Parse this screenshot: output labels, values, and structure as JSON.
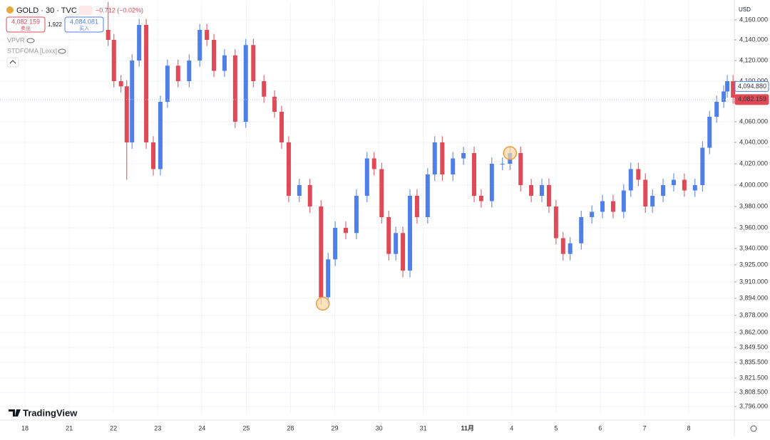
{
  "header": {
    "symbol": "GOLD · 30 · TVC",
    "change": "−0.712 (−0.02%)",
    "sell_price": "4,082.159",
    "sell_label": "卖出",
    "spread": "1,922",
    "buy_price": "4,084.081",
    "buy_label": "买入",
    "indicators": [
      "VPVR",
      "STDFOMA [Loxx]"
    ],
    "brand": "TradingView"
  },
  "chart_data": {
    "type": "candlestick",
    "currency": "USD",
    "up_color": "#4f7fe8",
    "down_color": "#e04a57",
    "grid": true,
    "x": [
      1.88,
      2.01,
      2.17,
      2.3,
      2.42,
      2.58,
      2.74,
      2.9,
      3.06,
      3.22,
      3.46,
      3.71,
      3.95,
      4.11,
      4.27,
      4.51,
      4.75,
      4.99,
      5.16,
      5.4,
      5.64,
      5.8,
      5.96,
      6.2,
      6.44,
      6.69,
      6.85,
      7.01,
      7.25,
      7.49,
      7.73,
      7.89,
      8.06,
      8.22,
      8.38,
      8.54,
      8.7,
      8.86,
      9.1,
      9.26,
      9.43,
      9.67,
      9.91,
      10.15,
      10.31,
      10.55,
      10.79,
      10.96,
      11.2,
      11.44,
      11.68,
      11.84,
      12.0,
      12.16,
      12.32,
      12.57,
      12.81,
      13.05,
      13.29,
      13.53,
      13.69,
      13.86,
      14.02,
      14.18,
      14.42,
      14.66,
      14.9,
      15.14,
      15.31,
      15.47,
      15.63,
      15.79,
      15.87,
      16.0
    ],
    "open": [
      4150,
      4140,
      4100,
      4095,
      4040,
      4120,
      4155,
      4040,
      4015,
      4080,
      4115,
      4100,
      4120,
      4150,
      4140,
      4110,
      4125,
      4060,
      4135,
      4100,
      4085,
      4070,
      4040,
      3990,
      4000,
      3980,
      3895,
      3930,
      3960,
      3955,
      3990,
      4025,
      4015,
      3970,
      3935,
      3955,
      3920,
      3990,
      3970,
      4010,
      4040,
      4010,
      4025,
      4030,
      3990,
      3985,
      4020,
      4020,
      4030,
      4000,
      3990,
      4000,
      3980,
      3950,
      3935,
      3945,
      3970,
      3975,
      3985,
      3975,
      3995,
      4015,
      4005,
      3980,
      3990,
      4000,
      4005,
      3995,
      4000,
      4035,
      4065,
      4080,
      4090,
      4100
    ],
    "high": [
      4178,
      4146,
      4106,
      4101,
      4126,
      4161,
      4161,
      4046,
      4086,
      4121,
      4121,
      4126,
      4156,
      4156,
      4146,
      4131,
      4131,
      4141,
      4141,
      4106,
      4091,
      4076,
      4046,
      4006,
      4006,
      3986,
      3936,
      3966,
      3966,
      3996,
      4031,
      4031,
      4021,
      3976,
      3961,
      3961,
      3996,
      3996,
      4016,
      4046,
      4046,
      4031,
      4036,
      4036,
      3996,
      4026,
      4026,
      4036,
      4036,
      4006,
      4006,
      4006,
      3986,
      3956,
      3951,
      3976,
      3981,
      3991,
      3991,
      4001,
      4021,
      4021,
      4011,
      3996,
      4006,
      4011,
      4011,
      4006,
      4041,
      4071,
      4086,
      4096,
      4106,
      4106
    ],
    "low": [
      4134,
      4094,
      4089,
      4005,
      4034,
      4114,
      4034,
      4009,
      4009,
      4074,
      4094,
      4094,
      4114,
      4134,
      4104,
      4104,
      4054,
      4054,
      4094,
      4079,
      4064,
      4034,
      3984,
      3984,
      3974,
      3888,
      3889,
      3924,
      3949,
      3949,
      3984,
      4009,
      3964,
      3929,
      3929,
      3914,
      3914,
      3964,
      3964,
      4004,
      4004,
      4004,
      4019,
      3984,
      3979,
      3979,
      4014,
      4014,
      3994,
      3984,
      3984,
      3974,
      3944,
      3929,
      3929,
      3939,
      3964,
      3969,
      3969,
      3969,
      3989,
      3999,
      3974,
      3974,
      3984,
      3994,
      3989,
      3989,
      3994,
      4029,
      4059,
      4074,
      4084,
      4078
    ],
    "close": [
      4140,
      4100,
      4095,
      4040,
      4120,
      4155,
      4040,
      4015,
      4080,
      4115,
      4100,
      4120,
      4150,
      4140,
      4110,
      4125,
      4060,
      4135,
      4100,
      4085,
      4070,
      4040,
      3990,
      4000,
      3980,
      3895,
      3930,
      3960,
      3955,
      3990,
      4025,
      4015,
      3970,
      3935,
      3955,
      3920,
      3990,
      3970,
      4010,
      4040,
      4010,
      4025,
      4030,
      3990,
      3985,
      4020,
      4020,
      4030,
      4000,
      3990,
      4000,
      3980,
      3950,
      3935,
      3945,
      3970,
      3975,
      3985,
      3975,
      3995,
      4015,
      4005,
      3980,
      3990,
      4000,
      4005,
      3995,
      4000,
      4035,
      4065,
      4080,
      4090,
      4100,
      4084
    ],
    "xlim": [
      -0.564,
      16.03
    ],
    "xticks": [
      {
        "value": 0,
        "label": "18"
      },
      {
        "value": 1,
        "label": "21"
      },
      {
        "value": 2,
        "label": "22"
      },
      {
        "value": 3,
        "label": "23"
      },
      {
        "value": 4,
        "label": "24"
      },
      {
        "value": 5,
        "label": "25"
      },
      {
        "value": 6,
        "label": "28"
      },
      {
        "value": 7,
        "label": "29"
      },
      {
        "value": 8,
        "label": "30"
      },
      {
        "value": 9,
        "label": "31"
      },
      {
        "value": 10,
        "label": "11月"
      },
      {
        "value": 11,
        "label": "4"
      },
      {
        "value": 12,
        "label": "5"
      },
      {
        "value": 13,
        "label": "6"
      },
      {
        "value": 14,
        "label": "7"
      },
      {
        "value": 15,
        "label": "8"
      }
    ],
    "ylim": [
      3789,
      4179
    ],
    "yticks": [
      {
        "value": 4160,
        "label": "4,160.000"
      },
      {
        "value": 4140,
        "label": "4,140.000"
      },
      {
        "value": 4120,
        "label": "4,120.000"
      },
      {
        "value": 4100,
        "label": "4,100.000"
      },
      {
        "value": 4080,
        "label": "4,080.000"
      },
      {
        "value": 4060,
        "label": "4,060.000"
      },
      {
        "value": 4040,
        "label": "4,040.000"
      },
      {
        "value": 4020,
        "label": "4,020.000"
      },
      {
        "value": 4000,
        "label": "4,000.000"
      },
      {
        "value": 3980,
        "label": "3,980.000"
      },
      {
        "value": 3960,
        "label": "3,960.000"
      },
      {
        "value": 3940,
        "label": "3,940.000"
      },
      {
        "value": 3925,
        "label": "3,925.000"
      },
      {
        "value": 3910,
        "label": "3,910.000"
      },
      {
        "value": 3894,
        "label": "3,894.000"
      },
      {
        "value": 3878,
        "label": "3,878.000"
      },
      {
        "value": 3862,
        "label": "3,862.000"
      },
      {
        "value": 3849.5,
        "label": "3,849.500"
      },
      {
        "value": 3835.5,
        "label": "3,835.500"
      },
      {
        "value": 3821.5,
        "label": "3,821.500"
      },
      {
        "value": 3808.5,
        "label": "3,808.500"
      },
      {
        "value": 3796,
        "label": "3,796.000"
      }
    ],
    "price_lines": [
      {
        "value": 4094.88,
        "label": "4,094.880",
        "color": "#4f7fe8"
      },
      {
        "value": 4082.159,
        "label": "4,082.159",
        "color": "#e04a57"
      }
    ],
    "markers": [
      {
        "x": 10.96,
        "y": 4030
      },
      {
        "x": 6.73,
        "y": 3889
      }
    ]
  }
}
